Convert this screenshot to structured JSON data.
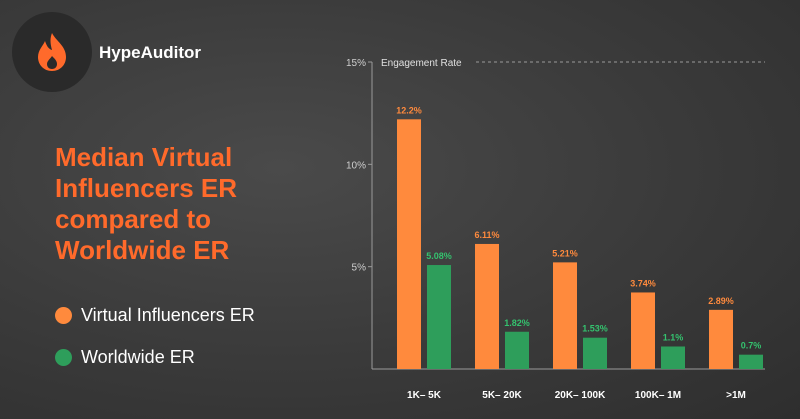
{
  "brand": {
    "name": "HypeAuditor",
    "logo_icon": "flame-icon"
  },
  "headline": "Median Virtual Influencers ER compared to Worldwide ER",
  "legend": [
    {
      "label": "Virtual Influencers ER",
      "color": "#ff8a3d"
    },
    {
      "label": "Worldwide ER",
      "color": "#2e9e5b"
    }
  ],
  "colors": {
    "accent": "#ff6a2b",
    "orange": "#ff8a3d",
    "green": "#2e9e5b",
    "green_label": "#34c26e"
  },
  "chart_data": {
    "type": "bar",
    "title": "Engagement Rate",
    "categories": [
      "1K– 5K",
      "5K– 20K",
      "20K– 100K",
      "100K– 1M",
      ">1M"
    ],
    "series": [
      {
        "name": "Virtual Influencers ER",
        "values": [
          12.2,
          6.11,
          5.21,
          3.74,
          2.89
        ],
        "labels": [
          "12.2%",
          "6.11%",
          "5.21%",
          "3.74%",
          "2.89%"
        ]
      },
      {
        "name": "Worldwide ER",
        "values": [
          5.08,
          1.82,
          1.53,
          1.1,
          0.7
        ],
        "labels": [
          "5.08%",
          "1.82%",
          "1.53%",
          "1.1%",
          "0.7%"
        ]
      }
    ],
    "yticks": [
      "15%",
      "10%",
      "5%"
    ],
    "ytick_values": [
      15,
      10,
      5
    ],
    "ylim": [
      0,
      15
    ],
    "grid": false,
    "legend_position": "left"
  }
}
